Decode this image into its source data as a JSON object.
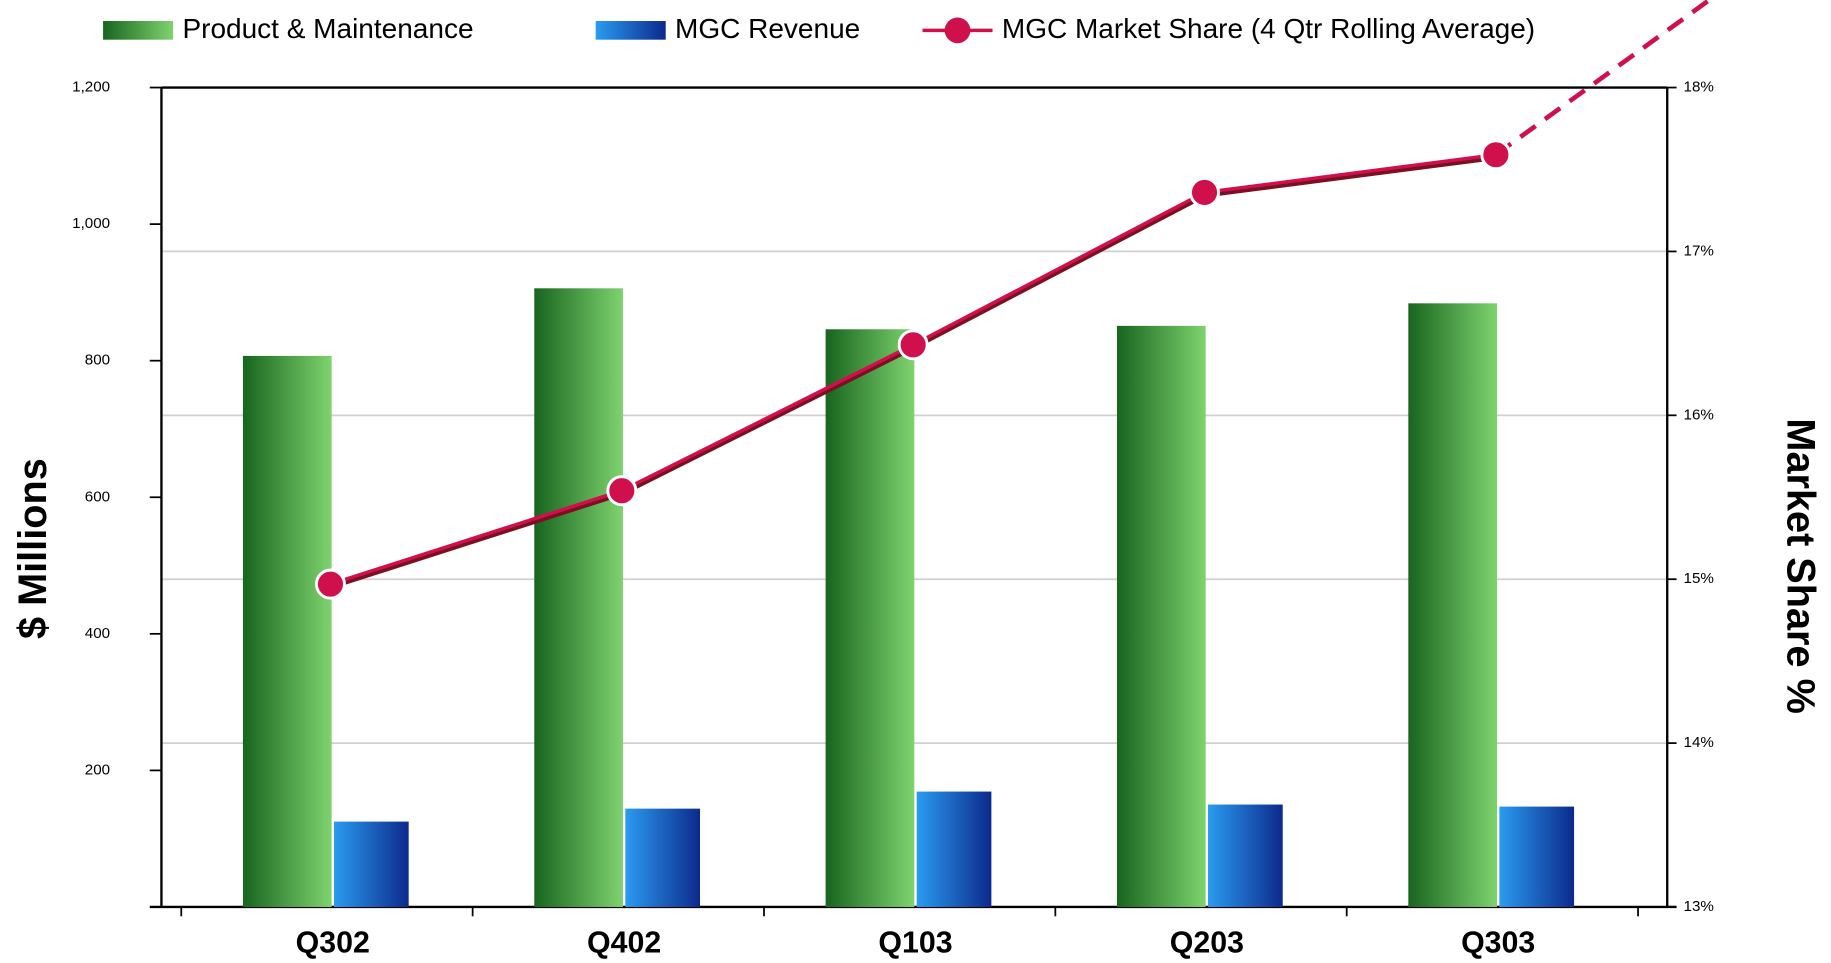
{
  "chart_data": {
    "type": "bar",
    "categories": [
      "Q302",
      "Q402",
      "Q103",
      "Q203",
      "Q303"
    ],
    "series": [
      {
        "name": "Product & Maintenance",
        "color": "#2e9e3a",
        "values": [
          807,
          906,
          846,
          851,
          884
        ]
      },
      {
        "name": "MGC Revenue",
        "color": "#1a5fc8",
        "values": [
          125,
          144,
          169,
          150,
          147
        ]
      },
      {
        "name": "MGC Market Share (4 Qtr Rolling Average)",
        "color": "#d0104c",
        "type": "line",
        "axis": "y2",
        "values": [
          14.97,
          15.54,
          16.43,
          17.36,
          17.59
        ]
      }
    ],
    "ylabel": "$ Millions",
    "y2label": "Market Share %",
    "ylim": [
      0,
      1200
    ],
    "yticks": [
      200,
      400,
      600,
      800,
      {
        "value": 1000,
        "label": "1,000"
      },
      {
        "value": 1200,
        "label": "1,200"
      }
    ],
    "y2lim": [
      13,
      18
    ],
    "y2ticks": [
      {
        "value": 13,
        "label": "13%"
      },
      {
        "value": 14,
        "label": "14%"
      },
      {
        "value": 15,
        "label": "15%"
      },
      {
        "value": 16,
        "label": "16%"
      },
      {
        "value": 17,
        "label": "17%"
      },
      {
        "value": 18,
        "label": "18%"
      }
    ],
    "grid": true,
    "legend": "top"
  }
}
